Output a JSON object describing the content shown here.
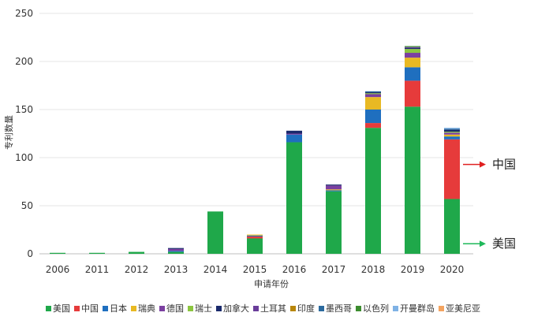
{
  "chart_data": {
    "type": "bar",
    "stacked": true,
    "title": "",
    "xlabel": "申请年份",
    "ylabel": "专利数量",
    "ylim": [
      0,
      250
    ],
    "yticks": [
      0,
      50,
      100,
      150,
      200,
      250
    ],
    "grid": true,
    "legend_position": "bottom",
    "categories": [
      "2006",
      "2011",
      "2012",
      "2013",
      "2014",
      "2015",
      "2016",
      "2017",
      "2018",
      "2019",
      "2020"
    ],
    "series": [
      {
        "name": "美国",
        "color": "#1fa84a",
        "values": [
          1,
          1,
          2,
          2,
          44,
          16,
          116,
          65,
          131,
          153,
          57
        ]
      },
      {
        "name": "中国",
        "color": "#e63b3b",
        "values": [
          0,
          0,
          0,
          0,
          0,
          2,
          0,
          0,
          5,
          27,
          62
        ]
      },
      {
        "name": "日本",
        "color": "#1f6fbf",
        "values": [
          0,
          0,
          0,
          1,
          0,
          1,
          8,
          1,
          14,
          14,
          3
        ]
      },
      {
        "name": "瑞典",
        "color": "#e8b923",
        "values": [
          0,
          0,
          0,
          0,
          0,
          1,
          0,
          1,
          13,
          10,
          2
        ]
      },
      {
        "name": "德国",
        "color": "#7b3fa0",
        "values": [
          0,
          0,
          0,
          2,
          0,
          0,
          1,
          4,
          3,
          5,
          2
        ]
      },
      {
        "name": "瑞士",
        "color": "#8cc63f",
        "values": [
          0,
          0,
          0,
          0,
          0,
          0,
          0,
          0,
          1,
          4,
          1
        ]
      },
      {
        "name": "加拿大",
        "color": "#1a2a6c",
        "values": [
          0,
          0,
          0,
          1,
          0,
          0,
          3,
          1,
          1,
          1,
          2
        ]
      },
      {
        "name": "土耳其",
        "color": "#6a3d9a",
        "values": [
          0,
          0,
          0,
          0,
          0,
          0,
          0,
          0,
          0,
          1,
          0
        ]
      },
      {
        "name": "印度",
        "color": "#b8860b",
        "values": [
          0,
          0,
          0,
          0,
          0,
          0,
          0,
          0,
          0,
          0,
          0
        ]
      },
      {
        "name": "墨西哥",
        "color": "#2b6a9e",
        "values": [
          0,
          0,
          0,
          0,
          0,
          0,
          0,
          0,
          1,
          0,
          1
        ]
      },
      {
        "name": "以色列",
        "color": "#3c8d2f",
        "values": [
          0,
          0,
          0,
          0,
          0,
          0,
          0,
          0,
          0,
          1,
          0
        ]
      },
      {
        "name": "开曼群岛",
        "color": "#7fb2e5",
        "values": [
          0,
          0,
          0,
          0,
          0,
          0,
          0,
          0,
          0,
          0,
          1
        ]
      },
      {
        "name": "亚美尼亚",
        "color": "#f4a460",
        "values": [
          0,
          0,
          0,
          0,
          0,
          0,
          0,
          0,
          0,
          0,
          0
        ]
      }
    ],
    "annotations": [
      {
        "text": "中国",
        "arrow_color": "#e02020",
        "target_category": "2020",
        "target_series": "中国"
      },
      {
        "text": "美国",
        "arrow_color": "#1fb85a",
        "target_category": "2020",
        "target_series": "美国"
      }
    ]
  }
}
